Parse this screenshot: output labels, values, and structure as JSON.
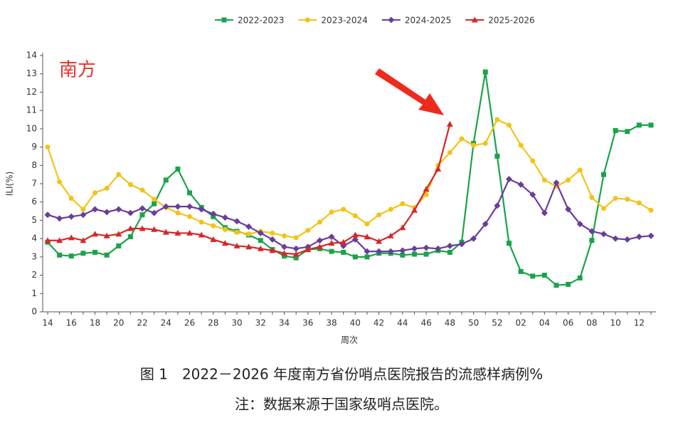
{
  "chart_data": {
    "type": "line",
    "annotation": "南方",
    "ylabel": "ILI(%)",
    "xlabel": "周次",
    "caption": "图 1　2022－2026 年度南方省份哨点医院报告的流感样病例%",
    "note": "注：数据来源于国家级哨点医院。",
    "categories": [
      "14",
      null,
      "16",
      null,
      "18",
      null,
      "20",
      null,
      "22",
      null,
      "24",
      null,
      "26",
      null,
      "28",
      null,
      "30",
      null,
      "32",
      null,
      "34",
      null,
      "36",
      null,
      "38",
      null,
      "40",
      null,
      "42",
      null,
      "44",
      null,
      "46",
      null,
      "48",
      null,
      "50",
      null,
      "52",
      null,
      "02",
      null,
      "04",
      null,
      "06",
      null,
      "08",
      null,
      "10",
      null,
      "12",
      null
    ],
    "ylim": [
      0,
      14
    ],
    "yticks": [
      0,
      1,
      2,
      3,
      4,
      5,
      6,
      7,
      8,
      9,
      10,
      11,
      12,
      13,
      14
    ],
    "grid": false,
    "legend": "top",
    "series": [
      {
        "name": "2022-2023",
        "color": "#1aa34a",
        "marker": "square",
        "values": [
          3.8,
          3.1,
          3.05,
          3.2,
          3.25,
          3.1,
          3.6,
          4.1,
          5.3,
          5.9,
          7.2,
          7.8,
          6.5,
          5.7,
          5.2,
          4.6,
          4.4,
          4.2,
          3.9,
          3.4,
          3.05,
          2.95,
          3.4,
          3.45,
          3.3,
          3.25,
          3.0,
          3.0,
          3.2,
          3.2,
          3.1,
          3.15,
          3.15,
          3.35,
          3.25,
          3.8,
          9.2,
          13.1,
          8.5,
          3.75,
          2.2,
          1.95,
          2.0,
          1.45,
          1.5,
          1.85,
          3.9,
          7.5,
          9.9,
          9.85,
          10.2,
          10.2
        ]
      },
      {
        "name": "2023-2024",
        "color": "#f2c318",
        "marker": "circle",
        "values": [
          9.0,
          7.1,
          6.2,
          5.6,
          6.5,
          6.75,
          7.5,
          6.95,
          6.65,
          6.15,
          5.7,
          5.4,
          5.2,
          4.9,
          4.7,
          4.5,
          4.35,
          4.25,
          4.4,
          4.3,
          4.15,
          4.05,
          4.45,
          4.9,
          5.45,
          5.6,
          5.25,
          4.8,
          5.3,
          5.6,
          5.9,
          5.7,
          6.4,
          8.0,
          8.7,
          9.45,
          9.1,
          9.2,
          10.5,
          10.2,
          9.1,
          8.25,
          7.2,
          6.85,
          7.2,
          7.75,
          6.25,
          5.65,
          6.2,
          6.15,
          5.95,
          5.55
        ]
      },
      {
        "name": "2024-2025",
        "color": "#6a3d9a",
        "marker": "diamond",
        "values": [
          5.3,
          5.1,
          5.2,
          5.3,
          5.6,
          5.45,
          5.6,
          5.4,
          5.65,
          5.4,
          5.75,
          5.75,
          5.75,
          5.6,
          5.35,
          5.15,
          4.95,
          4.65,
          4.3,
          3.95,
          3.55,
          3.45,
          3.55,
          3.9,
          4.1,
          3.6,
          3.95,
          3.3,
          3.3,
          3.3,
          3.35,
          3.45,
          3.5,
          3.45,
          3.6,
          3.7,
          4.0,
          4.8,
          5.8,
          7.25,
          6.95,
          6.4,
          5.4,
          7.05,
          5.6,
          4.8,
          4.4,
          4.25,
          4.0,
          3.95,
          4.1,
          4.15
        ]
      },
      {
        "name": "2025-2026",
        "color": "#d62728",
        "marker": "triangle",
        "values": [
          3.9,
          3.9,
          4.05,
          3.9,
          4.25,
          4.15,
          4.25,
          4.55,
          4.55,
          4.5,
          4.35,
          4.3,
          4.3,
          4.2,
          3.95,
          3.75,
          3.6,
          3.55,
          3.45,
          3.35,
          3.2,
          3.15,
          3.4,
          3.55,
          3.75,
          3.8,
          4.2,
          4.1,
          3.85,
          4.15,
          4.6,
          5.55,
          6.7,
          7.8,
          10.25,
          null,
          null,
          null,
          null,
          null,
          null,
          null,
          null,
          null,
          null,
          null,
          null,
          null,
          null,
          null,
          null,
          null
        ]
      }
    ]
  }
}
